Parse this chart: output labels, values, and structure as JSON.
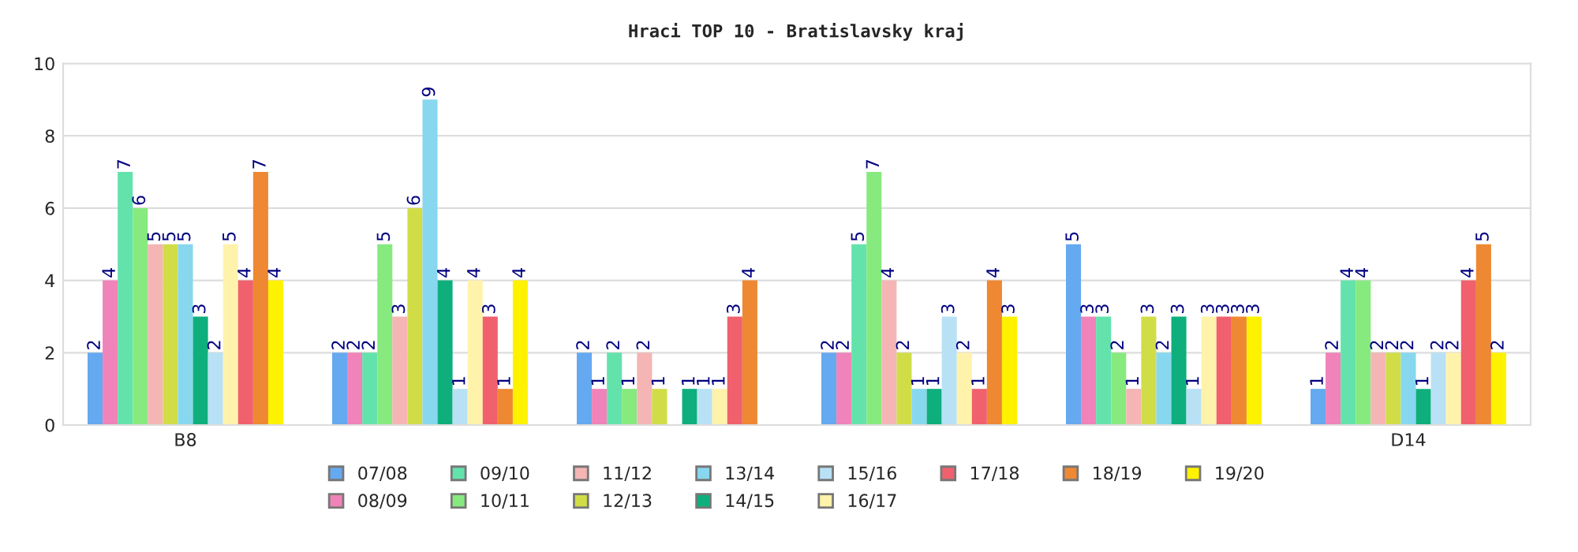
{
  "chart_data": {
    "type": "bar",
    "title": "Hraci TOP 10 - Bratislavsky kraj",
    "categories": [
      "B8",
      null,
      null,
      null,
      null,
      "D14"
    ],
    "series": [
      {
        "name": "07/08",
        "color": "#65a9f0",
        "values": [
          2,
          2,
          2,
          2,
          5,
          1
        ]
      },
      {
        "name": "08/09",
        "color": "#f083b9",
        "values": [
          4,
          2,
          1,
          2,
          3,
          2
        ]
      },
      {
        "name": "09/10",
        "color": "#63e3ab",
        "values": [
          7,
          2,
          2,
          5,
          3,
          4
        ]
      },
      {
        "name": "10/11",
        "color": "#86ea7f",
        "values": [
          6,
          5,
          1,
          7,
          2,
          4
        ]
      },
      {
        "name": "11/12",
        "color": "#f5b5b5",
        "values": [
          5,
          3,
          2,
          4,
          1,
          2
        ]
      },
      {
        "name": "12/13",
        "color": "#d0dd47",
        "values": [
          5,
          6,
          1,
          2,
          3,
          2
        ]
      },
      {
        "name": "13/14",
        "color": "#87d7ef",
        "values": [
          5,
          9,
          null,
          1,
          2,
          2
        ]
      },
      {
        "name": "14/15",
        "color": "#0eaf7c",
        "values": [
          3,
          4,
          1,
          1,
          3,
          1
        ]
      },
      {
        "name": "15/16",
        "color": "#b8e1f5",
        "values": [
          2,
          1,
          1,
          3,
          1,
          2
        ]
      },
      {
        "name": "16/17",
        "color": "#fff2ab",
        "values": [
          5,
          4,
          1,
          2,
          3,
          2
        ]
      },
      {
        "name": "17/18",
        "color": "#f0616d",
        "values": [
          4,
          3,
          3,
          1,
          3,
          4
        ]
      },
      {
        "name": "18/19",
        "color": "#ee8833",
        "values": [
          7,
          1,
          4,
          4,
          3,
          5
        ]
      },
      {
        "name": "19/20",
        "color": "#fff200",
        "values": [
          4,
          4,
          null,
          3,
          3,
          2
        ]
      }
    ],
    "ylim": [
      0,
      10
    ],
    "yticks": [
      0,
      2,
      4,
      6,
      8,
      10
    ],
    "grid": "y",
    "legend": "bottom",
    "data_labels": true
  }
}
